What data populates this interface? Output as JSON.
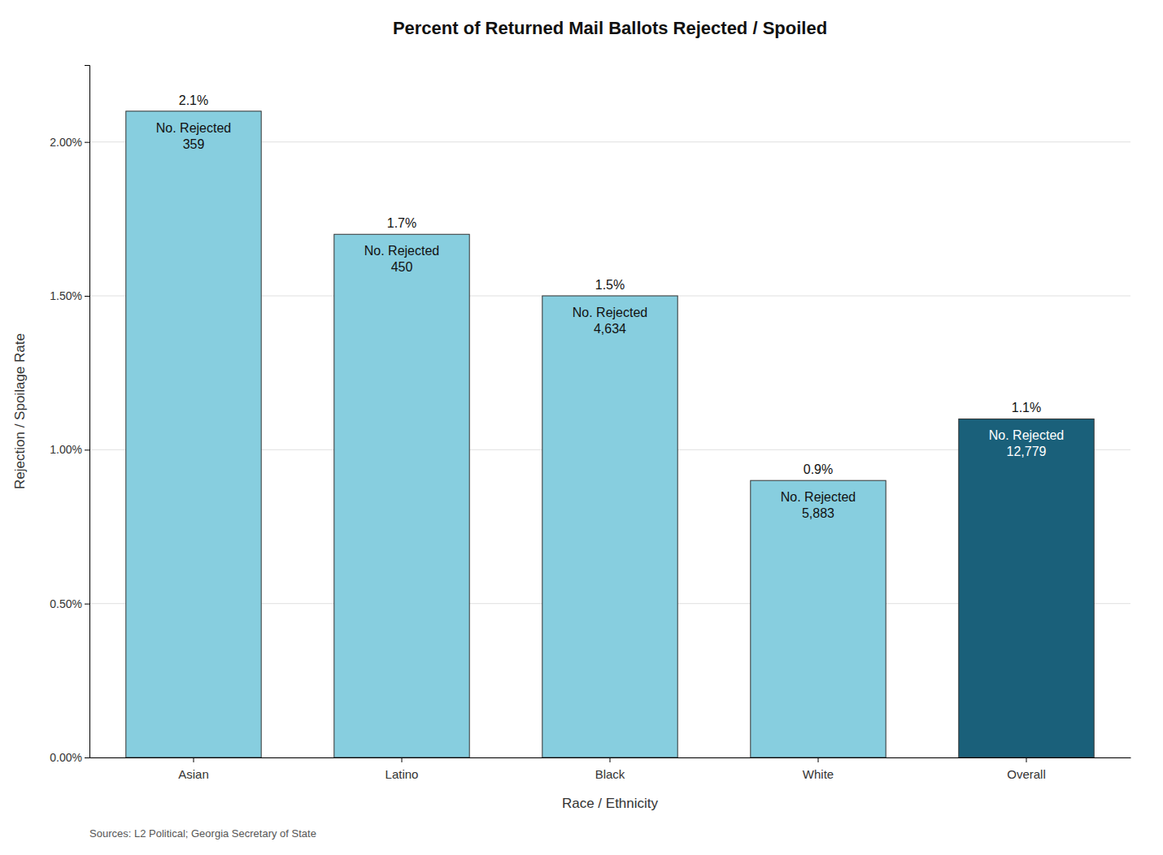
{
  "chart_data": {
    "type": "bar",
    "title": "Percent of Returned Mail Ballots Rejected / Spoiled",
    "x_label": "Race / Ethnicity",
    "y_label": "Rejection / Spoilage Rate",
    "categories": [
      "Asian",
      "Latino",
      "Black",
      "White",
      "Overall"
    ],
    "values": [
      0.021,
      0.017,
      0.015,
      0.009,
      0.011
    ],
    "value_labels": [
      "2.1%",
      "1.7%",
      "1.5%",
      "0.9%",
      "1.1%"
    ],
    "data_labels": true,
    "annotations": [
      "No. Rejected\n359",
      "No. Rejected\n450",
      "No. Rejected\n4,634",
      "No. Rejected\n5,883",
      "No. Rejected\n12,779"
    ],
    "colors": [
      "#87CEDF",
      "#87CEDF",
      "#87CEDF",
      "#87CEDF",
      "#1A607A"
    ],
    "ylim": [
      0,
      0.0225
    ],
    "yticks": [
      {
        "value": 0.0,
        "label": "0.00%"
      },
      {
        "value": 0.005,
        "label": "0.50%"
      },
      {
        "value": 0.01,
        "label": "1.00%"
      },
      {
        "value": 0.015,
        "label": "1.50%"
      },
      {
        "value": 0.02,
        "label": "2.00%"
      }
    ],
    "grid": true,
    "source": "Sources: L2 Political; Georgia Secretary of State"
  }
}
